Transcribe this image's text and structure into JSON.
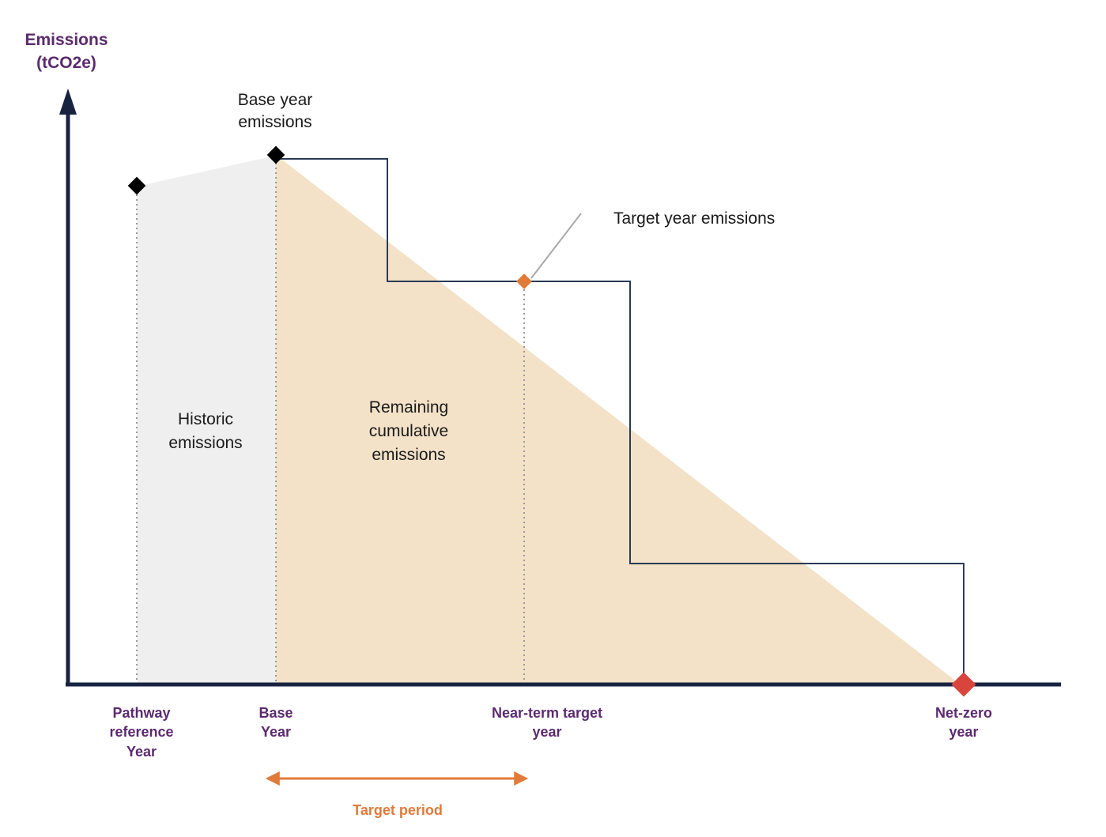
{
  "yaxis": {
    "line1": "Emissions",
    "line2": "(tCO2e)"
  },
  "xlabels": {
    "pathway": [
      "Pathway",
      "reference",
      "Year"
    ],
    "base": [
      "Base",
      "Year"
    ],
    "nearterm": [
      "Near-term target",
      "year"
    ],
    "netzero": [
      "Net-zero",
      "year"
    ]
  },
  "annotations": {
    "base_year_emissions": [
      "Base year",
      "emissions"
    ],
    "target_year_emissions": "Target year emissions",
    "historic": [
      "Historic",
      "emissions"
    ],
    "remaining": [
      "Remaining",
      "cumulative",
      "emissions"
    ]
  },
  "target_period": "Target period",
  "colors": {
    "axis": "#17233f",
    "historic_fill": "#efefef",
    "remaining_fill": "#f3e2c8",
    "step_line": "#2a3a55",
    "target_marker": "#e07b39",
    "netzero_marker": "#d9453d",
    "label_purple": "#5b2a6e",
    "period_orange": "#e07b39"
  }
}
